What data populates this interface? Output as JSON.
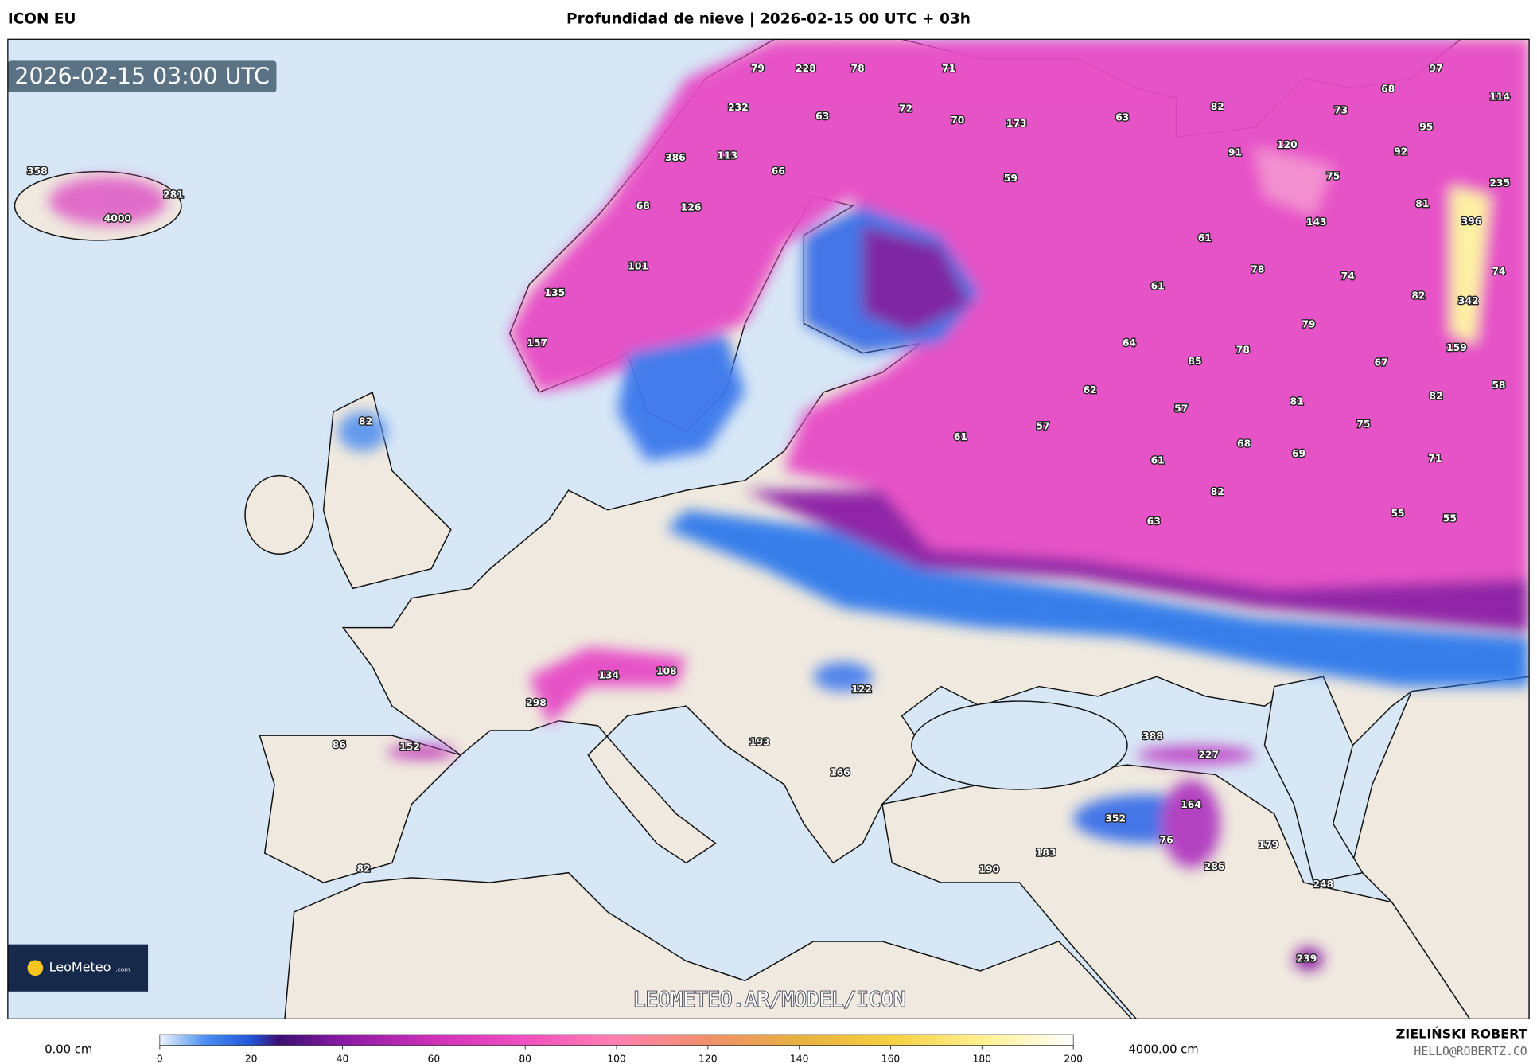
{
  "header": {
    "model": "ICON EU",
    "title": "Profundidad de nieve | 2026-02-15 00 UTC + 03h"
  },
  "map": {
    "timestamp": "2026-02-15 03:00 UTC",
    "logo": "LeoMeteo",
    "logo_suffix": ".com",
    "watermark": "LEOMETEO.AR/MODEL/ICON",
    "labels": [
      358,
      281,
      4000,
      79,
      228,
      78,
      71,
      97,
      68,
      114,
      232,
      72,
      70,
      173,
      63,
      63,
      82,
      73,
      95,
      386,
      113,
      66,
      91,
      120,
      92,
      75,
      59,
      235,
      68,
      126,
      81,
      143,
      396,
      61,
      101,
      78,
      74,
      74,
      61,
      82,
      135,
      342,
      79,
      157,
      64,
      159,
      85,
      78,
      67,
      62,
      81,
      82,
      58,
      57,
      82,
      57,
      75,
      61,
      68,
      69,
      71,
      61,
      82,
      55,
      55,
      63,
      134,
      108,
      122,
      298,
      86,
      152,
      388,
      227,
      193,
      166,
      352,
      164,
      76,
      179,
      183,
      286,
      190,
      82,
      248,
      239
    ]
  },
  "colorbar": {
    "min_label": "0.00 cm",
    "max_label": "4000.00 cm",
    "ticks": [
      0,
      20,
      40,
      60,
      80,
      100,
      120,
      140,
      160,
      180,
      200
    ]
  },
  "credits": {
    "name": "ZIELIŃSKI ROBERT",
    "email": "HELLO@ROBERTZ.CO"
  }
}
